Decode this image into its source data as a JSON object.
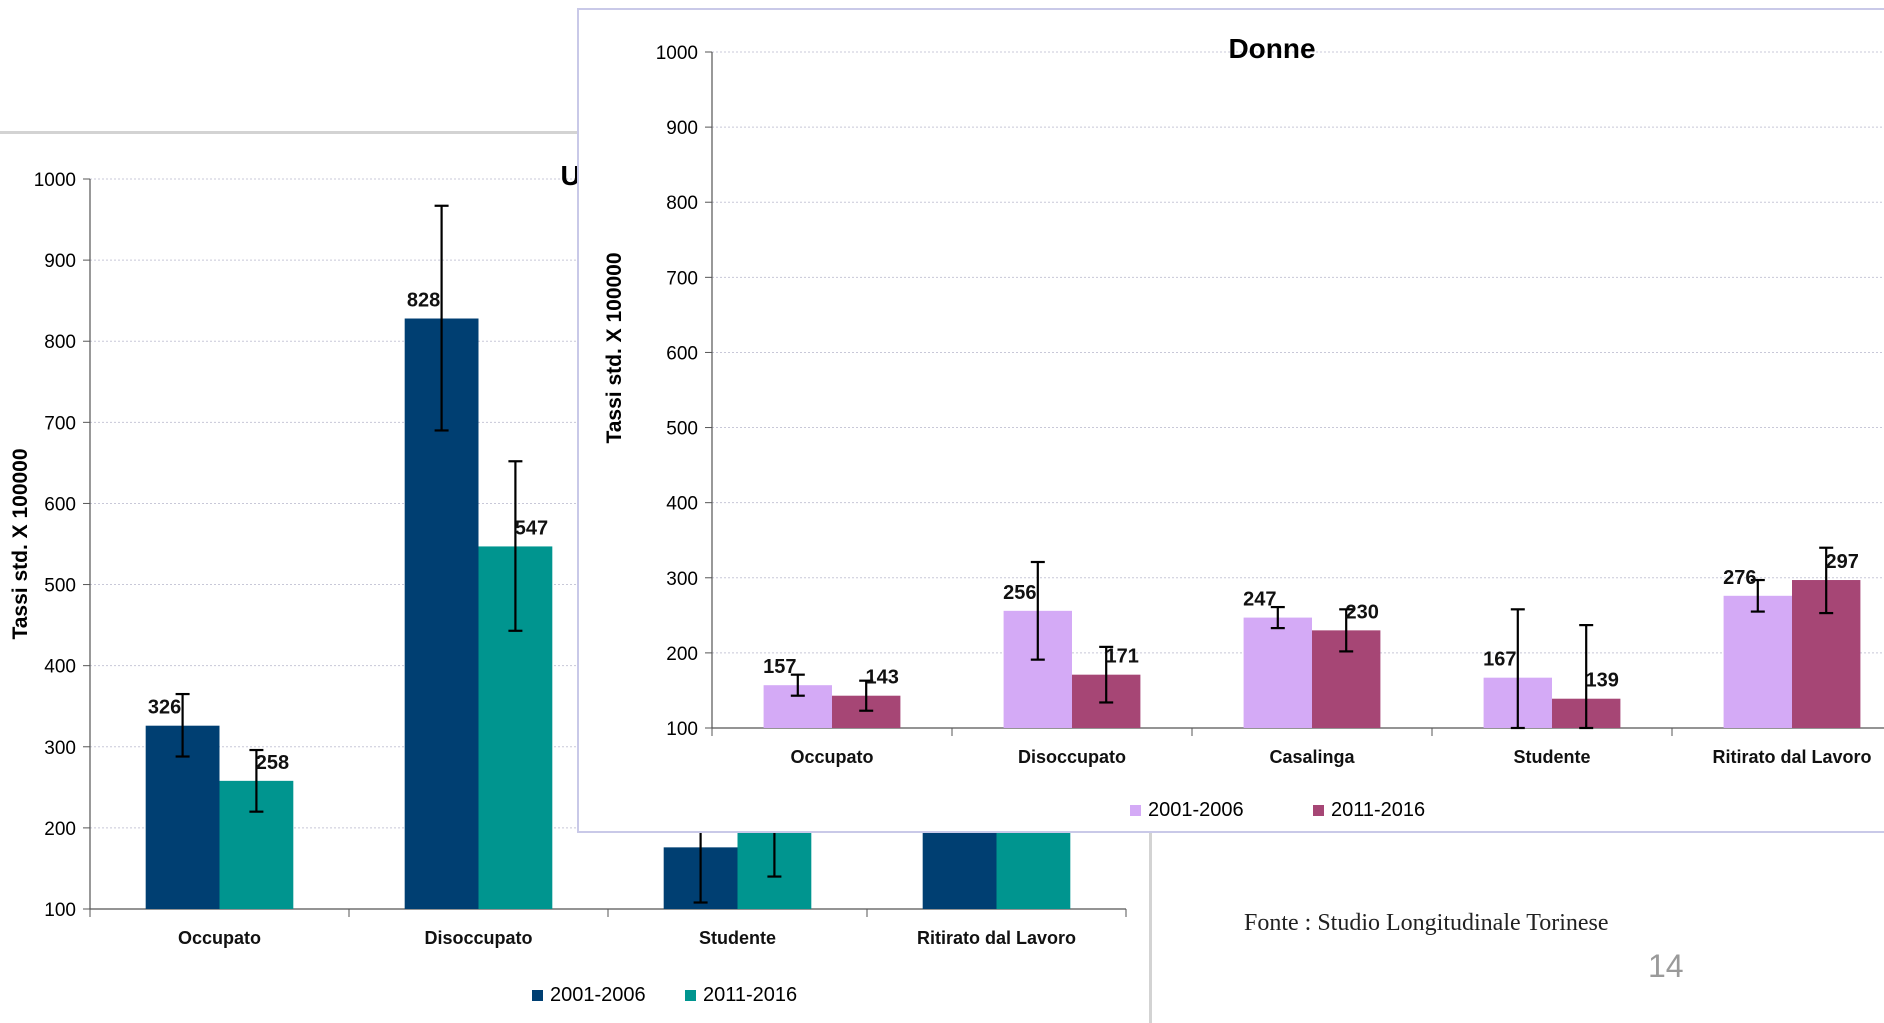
{
  "slide": {
    "source": "Fonte : Studio Longitudinale Torinese",
    "page_number": "14"
  },
  "chart_data": [
    {
      "id": "men",
      "type": "bar",
      "title": "Uomini",
      "ylabel": "Tassi std. X 100000",
      "xlabel": "",
      "ylim": [
        100,
        1000
      ],
      "yticks": [
        100,
        200,
        300,
        400,
        500,
        600,
        700,
        800,
        900,
        1000
      ],
      "grid": true,
      "legend_position": "bottom",
      "categories": [
        "Occupato",
        "Disoccupato",
        "Studente",
        "Ritirato dal Lavoro"
      ],
      "series": [
        {
          "name": "2001-2006",
          "color": "#003f72",
          "values": [
            326,
            828,
            176,
            300
          ],
          "err_low": [
            288,
            690,
            108,
            null
          ],
          "err_high": [
            365,
            967,
            250,
            null
          ],
          "labels": [
            "326",
            "828",
            "",
            ""
          ]
        },
        {
          "name": "2011-2016",
          "color": "#00958f",
          "values": [
            258,
            547,
            220,
            300
          ],
          "err_low": [
            220,
            443,
            140,
            null
          ],
          "err_high": [
            296,
            652,
            300,
            null
          ],
          "labels": [
            "258",
            "547",
            "",
            ""
          ]
        }
      ]
    },
    {
      "id": "women",
      "type": "bar",
      "title": "Donne",
      "ylabel": "Tassi std. X 100000",
      "xlabel": "",
      "ylim": [
        100,
        1000
      ],
      "yticks": [
        100,
        200,
        300,
        400,
        500,
        600,
        700,
        800,
        900,
        1000
      ],
      "grid": true,
      "legend_position": "bottom",
      "categories": [
        "Occupato",
        "Disoccupato",
        "Casalinga",
        "Studente",
        "Ritirato dal Lavoro"
      ],
      "series": [
        {
          "name": "2001-2006",
          "color": "#d4aaf6",
          "values": [
            157,
            256,
            247,
            167,
            276
          ],
          "err_low": [
            143,
            191,
            233,
            100,
            255
          ],
          "err_high": [
            171,
            321,
            261,
            258,
            297
          ],
          "labels": [
            "157",
            "256",
            "247",
            "167",
            "276"
          ]
        },
        {
          "name": "2011-2016",
          "color": "#a64675",
          "values": [
            143,
            171,
            230,
            139,
            297
          ],
          "err_low": [
            123,
            134,
            202,
            100,
            253
          ],
          "err_high": [
            163,
            208,
            258,
            237,
            340
          ],
          "labels": [
            "143",
            "171",
            "230",
            "139",
            "297"
          ]
        }
      ]
    }
  ]
}
